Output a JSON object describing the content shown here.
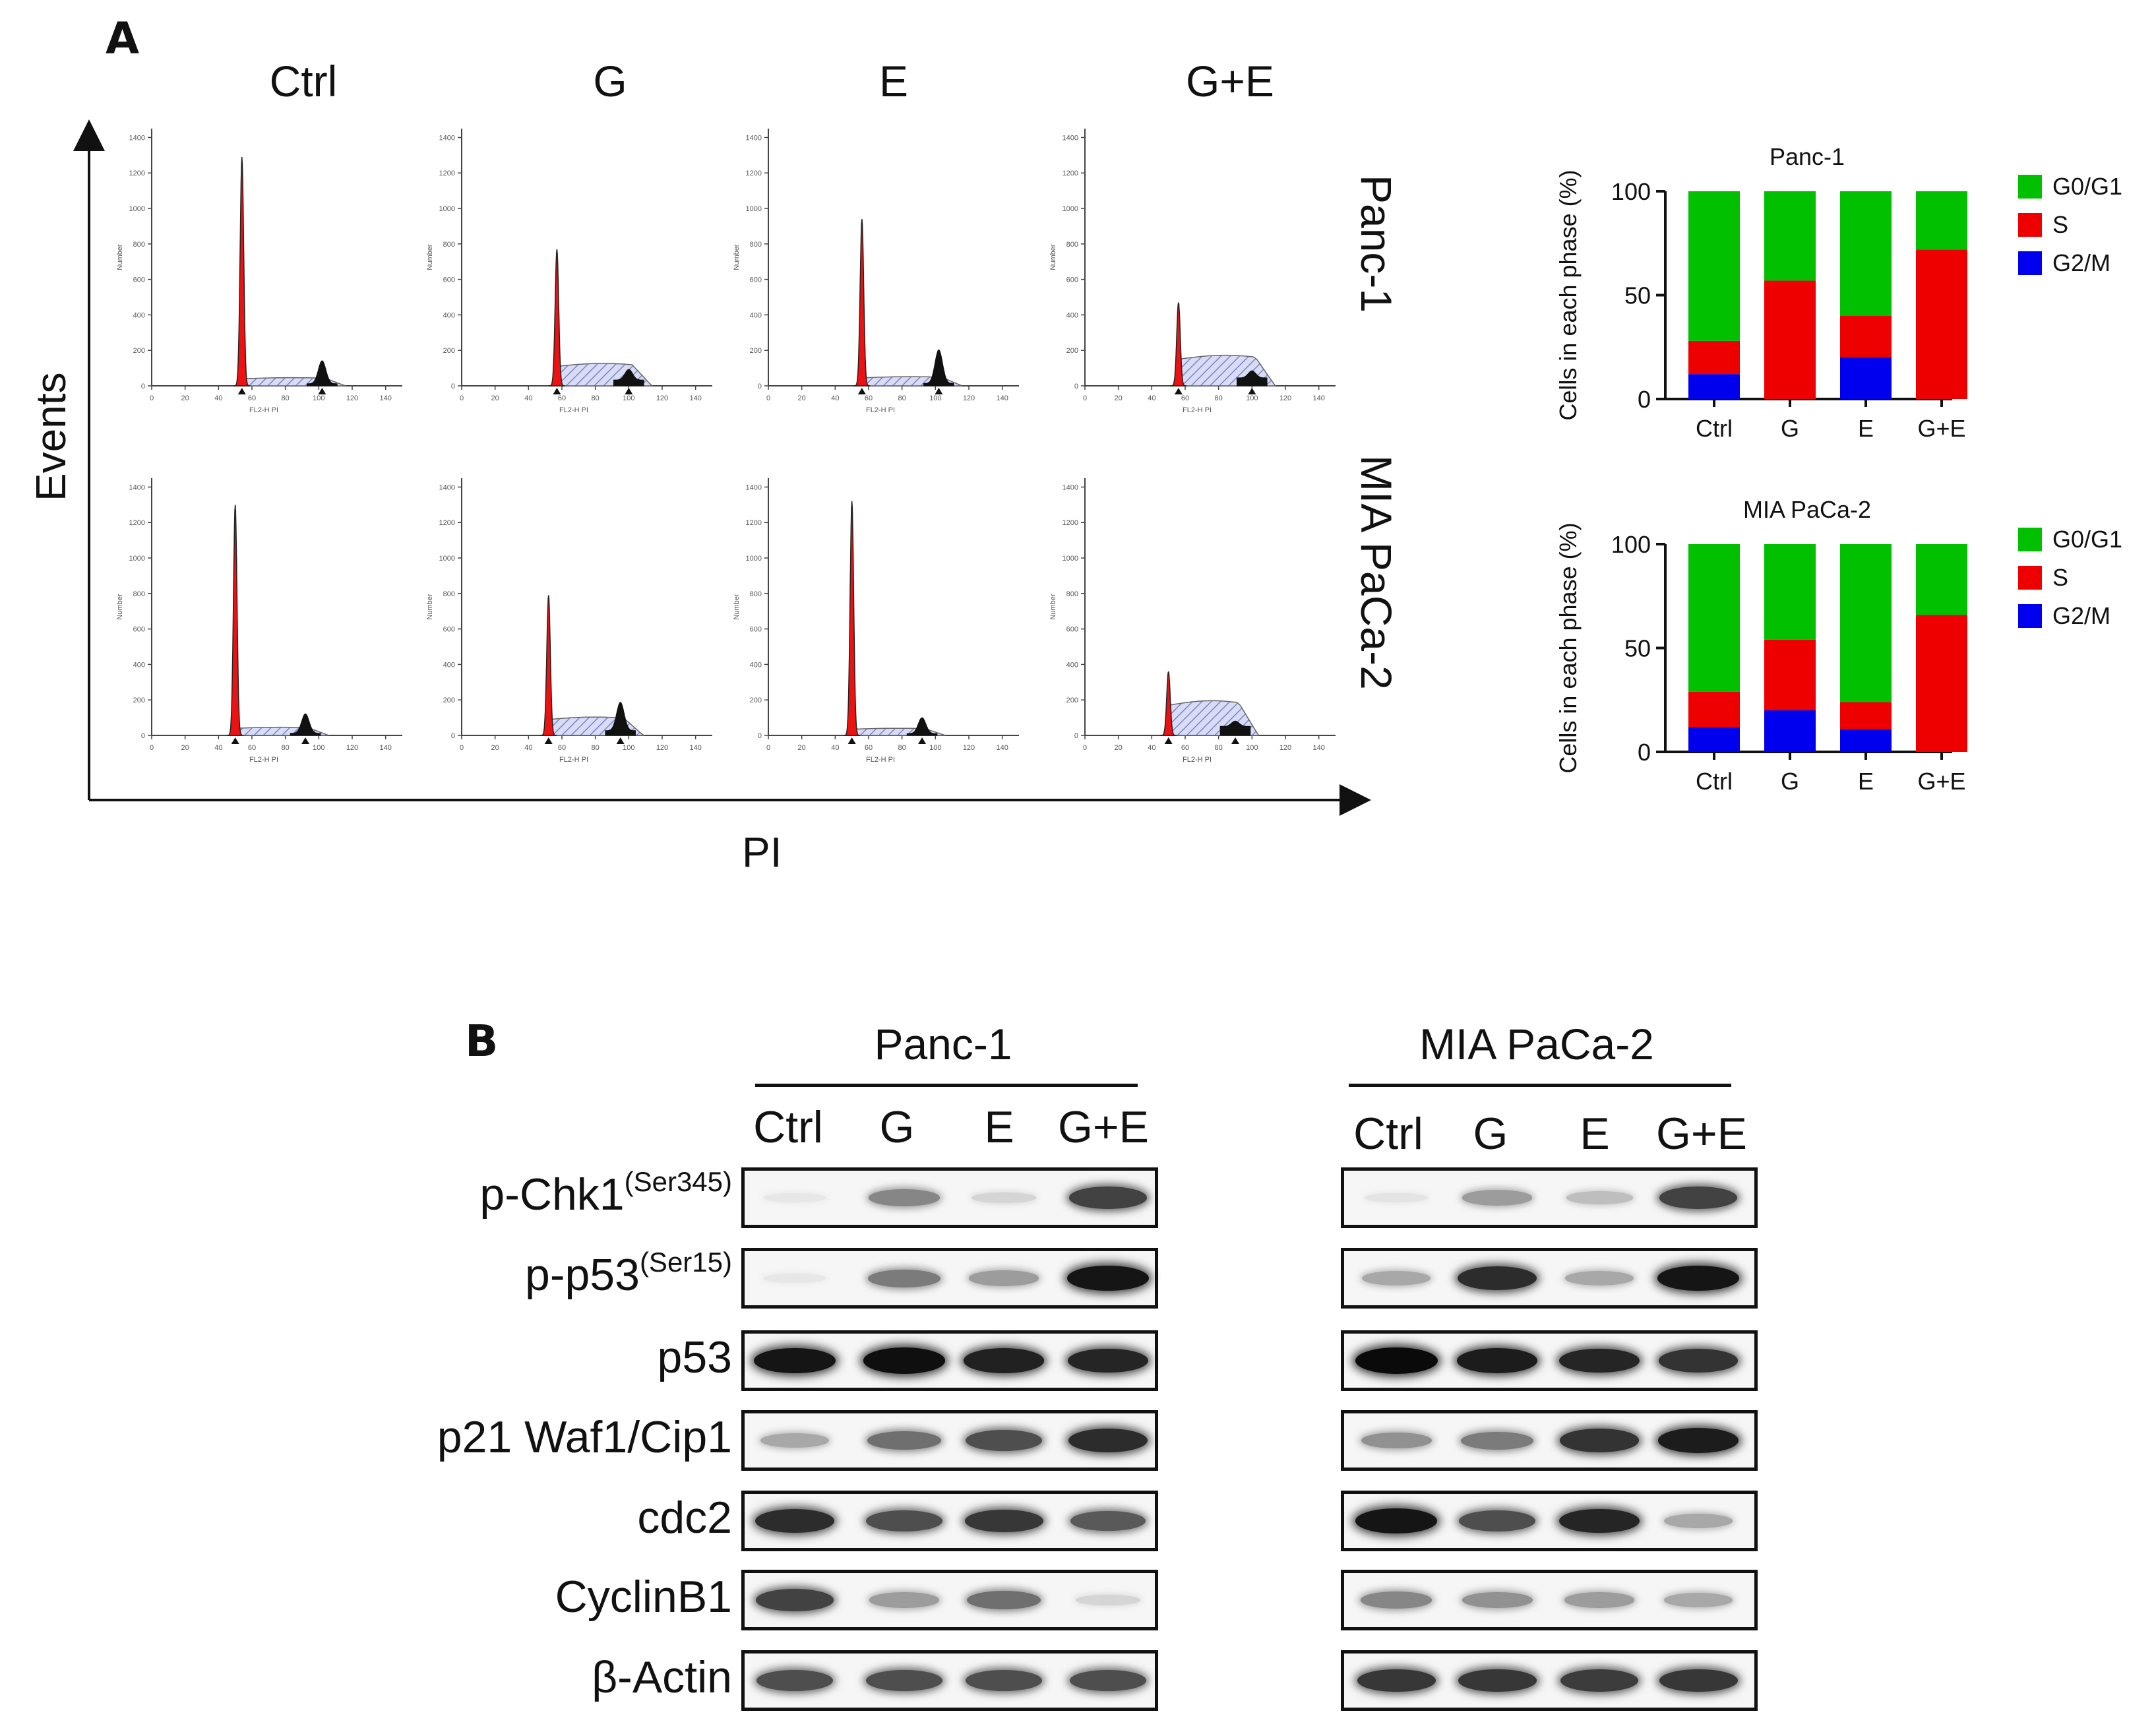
{
  "panel_a": {
    "letter": "A",
    "columns": [
      "Ctrl",
      "G",
      "E",
      "G+E"
    ],
    "rows": [
      "Panc-1",
      "MIA PaCa-2"
    ],
    "y_axis_label": "Events",
    "x_axis_label": "PI",
    "histogram_tick_labels": {
      "y": [
        "0",
        "200",
        "400",
        "600",
        "800",
        "1000",
        "1200",
        "1400"
      ],
      "x": [
        "0",
        "20",
        "40",
        "60",
        "80",
        "100",
        "120",
        "140"
      ],
      "x_axis_title": "FL2-H PI",
      "y_axis_title": "Number"
    },
    "histograms": [
      {
        "row": "Panc-1",
        "col": "Ctrl",
        "g1_pos": 54,
        "g1_height": 1290,
        "s_level": 40,
        "g2_pos": 102,
        "g2_height": 130
      },
      {
        "row": "Panc-1",
        "col": "G",
        "g1_pos": 57,
        "g1_height": 770,
        "s_level": 110,
        "g2_pos": 100,
        "g2_height": 60
      },
      {
        "row": "Panc-1",
        "col": "E",
        "g1_pos": 56,
        "g1_height": 940,
        "s_level": 45,
        "g2_pos": 102,
        "g2_height": 190
      },
      {
        "row": "Panc-1",
        "col": "G+E",
        "g1_pos": 56,
        "g1_height": 470,
        "s_level": 150,
        "g2_pos": 100,
        "g2_height": 40
      },
      {
        "row": "MIA PaCa-2",
        "col": "Ctrl",
        "g1_pos": 50,
        "g1_height": 1300,
        "s_level": 40,
        "g2_pos": 92,
        "g2_height": 110
      },
      {
        "row": "MIA PaCa-2",
        "col": "G",
        "g1_pos": 52,
        "g1_height": 790,
        "s_level": 90,
        "g2_pos": 95,
        "g2_height": 160
      },
      {
        "row": "MIA PaCa-2",
        "col": "E",
        "g1_pos": 50,
        "g1_height": 1320,
        "s_level": 35,
        "g2_pos": 92,
        "g2_height": 90
      },
      {
        "row": "MIA PaCa-2",
        "col": "G+E",
        "g1_pos": 50,
        "g1_height": 360,
        "s_level": 170,
        "g2_pos": 90,
        "g2_height": 30
      }
    ]
  },
  "chart_data": [
    {
      "type": "bar",
      "stacked": true,
      "title": "Panc-1",
      "ylabel": "Cells in each phase (%)",
      "xlabel": "",
      "categories": [
        "Ctrl",
        "G",
        "E",
        "G+E"
      ],
      "ylim": [
        0,
        100
      ],
      "yticks": [
        "0",
        "50",
        "100"
      ],
      "series": [
        {
          "name": "G2/M",
          "color": "#0000ee",
          "values": [
            12,
            0,
            20,
            0
          ]
        },
        {
          "name": "S",
          "color": "#ee0000",
          "values": [
            16,
            57,
            20,
            72
          ]
        },
        {
          "name": "G0/G1",
          "color": "#00c000",
          "values": [
            72,
            43,
            60,
            28
          ]
        }
      ],
      "legend": [
        "G0/G1",
        "S",
        "G2/M"
      ],
      "legend_position": "right"
    },
    {
      "type": "bar",
      "stacked": true,
      "title": "MIA PaCa-2",
      "ylabel": "Cells in each phase (%)",
      "xlabel": "",
      "categories": [
        "Ctrl",
        "G",
        "E",
        "G+E"
      ],
      "ylim": [
        0,
        100
      ],
      "yticks": [
        "0",
        "50",
        "100"
      ],
      "series": [
        {
          "name": "G2/M",
          "color": "#0000ee",
          "values": [
            12,
            20,
            11,
            0
          ]
        },
        {
          "name": "S",
          "color": "#ee0000",
          "values": [
            17,
            34,
            13,
            66
          ]
        },
        {
          "name": "G0/G1",
          "color": "#00c000",
          "values": [
            71,
            46,
            76,
            34
          ]
        }
      ],
      "legend": [
        "G0/G1",
        "S",
        "G2/M"
      ],
      "legend_position": "right"
    }
  ],
  "panel_b": {
    "letter": "B",
    "groups": [
      {
        "title": "Panc-1",
        "lanes": [
          "Ctrl",
          "G",
          "E",
          "G+E"
        ]
      },
      {
        "title": "MIA PaCa-2",
        "lanes": [
          "Ctrl",
          "G",
          "E",
          "G+E"
        ]
      }
    ],
    "rows": [
      {
        "label": "p-Chk1",
        "superscript": "(Ser345)",
        "panc1": [
          0.02,
          0.45,
          0.1,
          0.75
        ],
        "mia": [
          0.03,
          0.35,
          0.2,
          0.75
        ]
      },
      {
        "label": "p-p53",
        "superscript": "(Ser15)",
        "panc1": [
          0.02,
          0.5,
          0.35,
          0.95
        ],
        "mia": [
          0.3,
          0.85,
          0.3,
          0.95
        ]
      },
      {
        "label": "p53",
        "superscript": "",
        "panc1": [
          0.95,
          0.98,
          0.9,
          0.88
        ],
        "mia": [
          1.0,
          0.92,
          0.88,
          0.82
        ]
      },
      {
        "label": "p21 Waf1/Cip1",
        "superscript": "",
        "panc1": [
          0.3,
          0.55,
          0.7,
          0.85
        ],
        "mia": [
          0.4,
          0.5,
          0.82,
          0.92
        ]
      },
      {
        "label": "cdc2",
        "superscript": "",
        "panc1": [
          0.85,
          0.7,
          0.8,
          0.65
        ],
        "mia": [
          0.95,
          0.7,
          0.88,
          0.3
        ]
      },
      {
        "label": "CyclinB1",
        "superscript": "",
        "panc1": [
          0.75,
          0.35,
          0.55,
          0.1
        ],
        "mia": [
          0.45,
          0.4,
          0.35,
          0.3
        ]
      },
      {
        "label": "β-Actin",
        "superscript": "",
        "panc1": [
          0.7,
          0.7,
          0.7,
          0.7
        ],
        "mia": [
          0.8,
          0.8,
          0.78,
          0.8
        ]
      }
    ]
  }
}
